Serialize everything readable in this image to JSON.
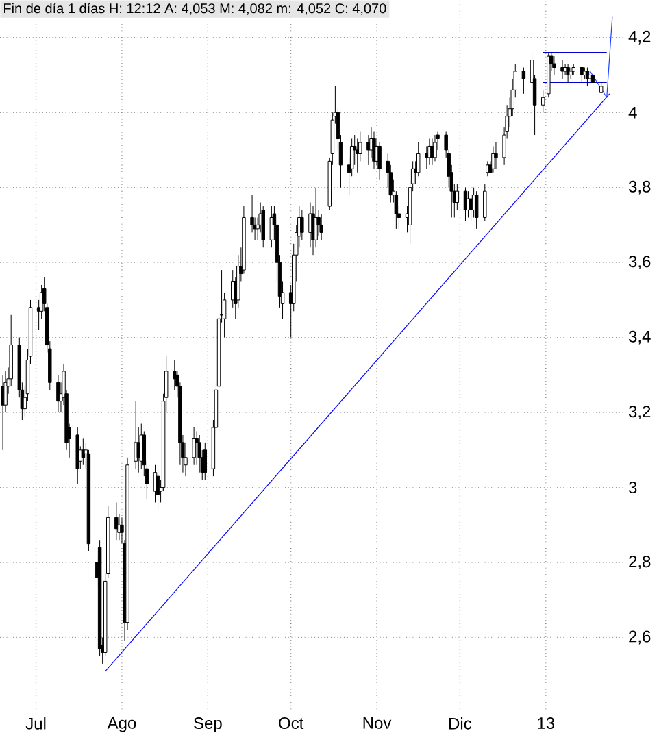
{
  "chart_data": {
    "type": "candlestick",
    "title": "Fin de día 1 días H: 12:12 A: 4,053 M: 4,082 m: 4,052 C: 4,070",
    "x": [
      "2012-06-19",
      "2012-06-20",
      "2012-06-21",
      "2012-06-22",
      "2012-06-25",
      "2012-06-26",
      "2012-06-27",
      "2012-06-28",
      "2012-06-29",
      "2012-07-02",
      "2012-07-03",
      "2012-07-04",
      "2012-07-05",
      "2012-07-06",
      "2012-07-09",
      "2012-07-10",
      "2012-07-11",
      "2012-07-12",
      "2012-07-13",
      "2012-07-16",
      "2012-07-17",
      "2012-07-18",
      "2012-07-19",
      "2012-07-20",
      "2012-07-23",
      "2012-07-24",
      "2012-07-25",
      "2012-07-26",
      "2012-07-27",
      "2012-07-30",
      "2012-07-31",
      "2012-08-01",
      "2012-08-02",
      "2012-08-03",
      "2012-08-06",
      "2012-08-07",
      "2012-08-08",
      "2012-08-09",
      "2012-08-10",
      "2012-08-13",
      "2012-08-14",
      "2012-08-15",
      "2012-08-16",
      "2012-08-17",
      "2012-08-20",
      "2012-08-21",
      "2012-08-22",
      "2012-08-23",
      "2012-08-24",
      "2012-08-27",
      "2012-08-28",
      "2012-08-29",
      "2012-08-30",
      "2012-08-31",
      "2012-09-03",
      "2012-09-04",
      "2012-09-05",
      "2012-09-06",
      "2012-09-07",
      "2012-09-10",
      "2012-09-11",
      "2012-09-12",
      "2012-09-13",
      "2012-09-14",
      "2012-09-17",
      "2012-09-18",
      "2012-09-19",
      "2012-09-20",
      "2012-09-21",
      "2012-09-24",
      "2012-09-25",
      "2012-09-26",
      "2012-09-27",
      "2012-09-28",
      "2012-10-01",
      "2012-10-02",
      "2012-10-03",
      "2012-10-04",
      "2012-10-05",
      "2012-10-08",
      "2012-10-09",
      "2012-10-10",
      "2012-10-11",
      "2012-10-12",
      "2012-10-15",
      "2012-10-16",
      "2012-10-17",
      "2012-10-18",
      "2012-10-19",
      "2012-10-22",
      "2012-10-23",
      "2012-10-24",
      "2012-10-25",
      "2012-10-26",
      "2012-10-29",
      "2012-10-30",
      "2012-10-31",
      "2012-11-01",
      "2012-11-02",
      "2012-11-05",
      "2012-11-06",
      "2012-11-07",
      "2012-11-08",
      "2012-11-09",
      "2012-11-12",
      "2012-11-13",
      "2012-11-14",
      "2012-11-15",
      "2012-11-16",
      "2012-11-19",
      "2012-11-20",
      "2012-11-21",
      "2012-11-22",
      "2012-11-23",
      "2012-11-26",
      "2012-11-27",
      "2012-11-28",
      "2012-11-29",
      "2012-11-30",
      "2012-12-03",
      "2012-12-04",
      "2012-12-05",
      "2012-12-06",
      "2012-12-07",
      "2012-12-10",
      "2012-12-11",
      "2012-12-12",
      "2012-12-13",
      "2012-12-14",
      "2012-12-17",
      "2012-12-18",
      "2012-12-19",
      "2012-12-20",
      "2012-12-21",
      "2012-12-24",
      "2012-12-27",
      "2012-12-28",
      "2012-12-31",
      "2013-01-02",
      "2013-01-03",
      "2013-01-04",
      "2013-01-07",
      "2013-01-08",
      "2013-01-09",
      "2013-01-10",
      "2013-01-11",
      "2013-01-14",
      "2013-01-15",
      "2013-01-16",
      "2013-01-17",
      "2013-01-18",
      "2013-01-21"
    ],
    "ohlc": [
      [
        3.27,
        3.3,
        3.1,
        3.22
      ],
      [
        3.22,
        3.31,
        3.2,
        3.28
      ],
      [
        3.27,
        3.32,
        3.25,
        3.29
      ],
      [
        3.29,
        3.46,
        3.27,
        3.38
      ],
      [
        3.38,
        3.4,
        3.24,
        3.26
      ],
      [
        3.26,
        3.28,
        3.18,
        3.21
      ],
      [
        3.21,
        3.27,
        3.19,
        3.24
      ],
      [
        3.25,
        3.37,
        3.23,
        3.34
      ],
      [
        3.35,
        3.5,
        3.33,
        3.48
      ],
      [
        3.48,
        3.5,
        3.42,
        3.47
      ],
      [
        3.47,
        3.54,
        3.45,
        3.52
      ],
      [
        3.53,
        3.56,
        3.47,
        3.49
      ],
      [
        3.48,
        3.49,
        3.36,
        3.38
      ],
      [
        3.37,
        3.39,
        3.26,
        3.28
      ],
      [
        3.28,
        3.3,
        3.2,
        3.23
      ],
      [
        3.23,
        3.28,
        3.2,
        3.25
      ],
      [
        3.24,
        3.33,
        3.22,
        3.31
      ],
      [
        3.25,
        3.26,
        3.1,
        3.12
      ],
      [
        3.16,
        3.17,
        3.08,
        3.13
      ],
      [
        3.14,
        3.16,
        3.01,
        3.05
      ],
      [
        3.07,
        3.11,
        3.05,
        3.1
      ],
      [
        3.1,
        3.13,
        3.06,
        3.08
      ],
      [
        3.09,
        3.12,
        3.05,
        3.1
      ],
      [
        3.09,
        3.1,
        2.83,
        2.85
      ],
      [
        2.8,
        2.82,
        2.73,
        2.76
      ],
      [
        2.84,
        2.86,
        2.55,
        2.57
      ],
      [
        2.58,
        2.6,
        2.53,
        2.56
      ],
      [
        2.56,
        2.77,
        2.55,
        2.75
      ],
      [
        2.77,
        2.95,
        2.76,
        2.92
      ],
      [
        2.92,
        2.96,
        2.86,
        2.89
      ],
      [
        2.88,
        2.93,
        2.86,
        2.9
      ],
      [
        2.9,
        2.92,
        2.85,
        2.88
      ],
      [
        2.85,
        2.86,
        2.59,
        2.64
      ],
      [
        2.64,
        3.08,
        2.62,
        3.06
      ],
      [
        3.07,
        3.23,
        3.05,
        3.12
      ],
      [
        3.12,
        3.16,
        3.04,
        3.08
      ],
      [
        3.07,
        3.17,
        3.05,
        3.14
      ],
      [
        3.14,
        3.15,
        3.03,
        3.06
      ],
      [
        3.05,
        3.07,
        2.97,
        3.01
      ],
      [
        2.99,
        3.06,
        2.96,
        3.04
      ],
      [
        3.03,
        3.05,
        2.94,
        2.98
      ],
      [
        2.99,
        3.02,
        2.96,
        3.0
      ],
      [
        3.0,
        3.25,
        2.99,
        3.23
      ],
      [
        3.24,
        3.35,
        3.2,
        3.31
      ],
      [
        3.31,
        3.34,
        3.26,
        3.29
      ],
      [
        3.3,
        3.31,
        3.24,
        3.27
      ],
      [
        3.27,
        3.28,
        3.06,
        3.12
      ],
      [
        3.12,
        3.14,
        3.04,
        3.08
      ],
      [
        3.06,
        3.12,
        3.03,
        3.08
      ],
      [
        3.08,
        3.16,
        3.06,
        3.13
      ],
      [
        3.13,
        3.15,
        3.06,
        3.12
      ],
      [
        3.12,
        3.14,
        3.04,
        3.08
      ],
      [
        3.08,
        3.1,
        3.02,
        3.04
      ],
      [
        3.1,
        3.12,
        3.02,
        3.04
      ],
      [
        3.05,
        3.18,
        3.03,
        3.16
      ],
      [
        3.16,
        3.28,
        3.14,
        3.26
      ],
      [
        3.27,
        3.48,
        3.25,
        3.45
      ],
      [
        3.46,
        3.58,
        3.44,
        3.46
      ],
      [
        3.45,
        3.52,
        3.4,
        3.5
      ],
      [
        3.5,
        3.58,
        3.48,
        3.55
      ],
      [
        3.55,
        3.56,
        3.45,
        3.49
      ],
      [
        3.5,
        3.62,
        3.48,
        3.59
      ],
      [
        3.59,
        3.64,
        3.55,
        3.57
      ],
      [
        3.58,
        3.75,
        3.57,
        3.72
      ],
      [
        3.72,
        3.78,
        3.68,
        3.7
      ],
      [
        3.7,
        3.72,
        3.66,
        3.69
      ],
      [
        3.69,
        3.72,
        3.66,
        3.7
      ],
      [
        3.7,
        3.76,
        3.68,
        3.73
      ],
      [
        3.74,
        3.75,
        3.64,
        3.66
      ],
      [
        3.66,
        3.75,
        3.64,
        3.72
      ],
      [
        3.73,
        3.75,
        3.66,
        3.7
      ],
      [
        3.7,
        3.72,
        3.55,
        3.6
      ],
      [
        3.6,
        3.62,
        3.48,
        3.51
      ],
      [
        3.49,
        3.55,
        3.45,
        3.52
      ],
      [
        3.52,
        3.54,
        3.4,
        3.49
      ],
      [
        3.49,
        3.65,
        3.47,
        3.62
      ],
      [
        3.62,
        3.7,
        3.55,
        3.68
      ],
      [
        3.67,
        3.75,
        3.64,
        3.72
      ],
      [
        3.72,
        3.74,
        3.66,
        3.68
      ],
      [
        3.68,
        3.76,
        3.64,
        3.73
      ],
      [
        3.73,
        3.75,
        3.62,
        3.66
      ],
      [
        3.66,
        3.8,
        3.64,
        3.72
      ],
      [
        3.72,
        3.74,
        3.67,
        3.7
      ],
      [
        3.7,
        3.73,
        3.66,
        3.68
      ],
      [
        3.75,
        3.88,
        3.74,
        3.87
      ],
      [
        3.89,
        4.0,
        3.86,
        3.98
      ],
      [
        3.99,
        4.07,
        3.97,
        4.0
      ],
      [
        4.0,
        4.01,
        3.9,
        3.93
      ],
      [
        3.92,
        3.94,
        3.8,
        3.86
      ],
      [
        3.86,
        3.88,
        3.78,
        3.84
      ],
      [
        3.85,
        3.93,
        3.83,
        3.91
      ],
      [
        3.91,
        3.94,
        3.86,
        3.9
      ],
      [
        3.9,
        3.93,
        3.84,
        3.89
      ],
      [
        3.89,
        3.95,
        3.87,
        3.92
      ],
      [
        3.92,
        3.94,
        3.86,
        3.9
      ],
      [
        3.9,
        3.96,
        3.88,
        3.93
      ],
      [
        3.93,
        3.95,
        3.85,
        3.87
      ],
      [
        3.87,
        3.93,
        3.86,
        3.91
      ],
      [
        3.91,
        3.92,
        3.82,
        3.85
      ],
      [
        3.87,
        3.89,
        3.8,
        3.84
      ],
      [
        3.84,
        3.86,
        3.76,
        3.78
      ],
      [
        3.78,
        3.82,
        3.76,
        3.79
      ],
      [
        3.78,
        3.79,
        3.69,
        3.73
      ],
      [
        3.73,
        3.75,
        3.69,
        3.72
      ],
      [
        3.72,
        3.75,
        3.68,
        3.73
      ],
      [
        3.7,
        3.82,
        3.65,
        3.8
      ],
      [
        3.81,
        3.87,
        3.79,
        3.85
      ],
      [
        3.85,
        3.87,
        3.81,
        3.84
      ],
      [
        3.84,
        3.92,
        3.83,
        3.89
      ],
      [
        3.89,
        3.91,
        3.85,
        3.88
      ],
      [
        3.88,
        3.93,
        3.86,
        3.91
      ],
      [
        3.91,
        3.93,
        3.86,
        3.88
      ],
      [
        3.88,
        3.94,
        3.87,
        3.92
      ],
      [
        3.94,
        3.95,
        3.9,
        3.93
      ],
      [
        3.94,
        3.95,
        3.88,
        3.9
      ],
      [
        3.89,
        3.9,
        3.8,
        3.83
      ],
      [
        3.84,
        3.86,
        3.72,
        3.79
      ],
      [
        3.79,
        3.81,
        3.72,
        3.76
      ],
      [
        3.76,
        3.81,
        3.74,
        3.79
      ],
      [
        3.79,
        3.8,
        3.71,
        3.74
      ],
      [
        3.74,
        3.79,
        3.72,
        3.77
      ],
      [
        3.77,
        3.78,
        3.71,
        3.74
      ],
      [
        3.74,
        3.8,
        3.72,
        3.78
      ],
      [
        3.78,
        3.79,
        3.69,
        3.72
      ],
      [
        3.72,
        3.81,
        3.71,
        3.79
      ],
      [
        3.84,
        3.87,
        3.83,
        3.86
      ],
      [
        3.86,
        3.87,
        3.84,
        3.84
      ],
      [
        3.85,
        3.91,
        3.84,
        3.89
      ],
      [
        3.89,
        3.92,
        3.85,
        3.88
      ],
      [
        3.88,
        3.96,
        3.86,
        3.94
      ],
      [
        3.95,
        4.02,
        3.93,
        3.99
      ],
      [
        3.99,
        4.04,
        3.96,
        4.01
      ],
      [
        4.01,
        4.09,
        3.99,
        4.06
      ],
      [
        4.06,
        4.13,
        4.04,
        4.11
      ],
      [
        4.11,
        4.12,
        4.05,
        4.09
      ],
      [
        4.08,
        4.16,
        4.07,
        4.14
      ],
      [
        4.09,
        4.1,
        3.94,
        4.02
      ],
      [
        4.02,
        4.06,
        4.0,
        4.04
      ],
      [
        4.05,
        4.16,
        4.04,
        4.15
      ],
      [
        4.15,
        4.16,
        4.11,
        4.13
      ],
      [
        4.13,
        4.15,
        4.1,
        4.12
      ],
      [
        4.12,
        4.14,
        4.09,
        4.11
      ],
      [
        4.11,
        4.13,
        4.1,
        4.12
      ],
      [
        4.12,
        4.13,
        4.08,
        4.1
      ],
      [
        4.1,
        4.12,
        4.09,
        4.11
      ],
      [
        4.11,
        4.13,
        4.1,
        4.12
      ],
      [
        4.12,
        4.12,
        4.08,
        4.1
      ],
      [
        4.1,
        4.12,
        4.09,
        4.11
      ],
      [
        4.11,
        4.12,
        4.07,
        4.09
      ],
      [
        4.09,
        4.11,
        4.08,
        4.1
      ],
      [
        4.1,
        4.1,
        4.06,
        4.08
      ],
      [
        4.053,
        4.082,
        4.052,
        4.07
      ]
    ],
    "series": [
      {
        "type": "line",
        "color": "#0000ff",
        "x": [
          "2012-07-26",
          "2013-01-24"
        ],
        "values": [
          2.51,
          4.05
        ]
      },
      {
        "type": "line",
        "color": "#0000cc",
        "x": [
          "2012-12-31",
          "2013-01-23"
        ],
        "values": [
          4.16,
          4.16
        ]
      },
      {
        "type": "line",
        "color": "#0000cc",
        "x": [
          "2012-12-31",
          "2013-01-23"
        ],
        "values": [
          4.08,
          4.08
        ]
      },
      {
        "type": "line",
        "color": "#1f3fff",
        "x": [
          "2013-01-17",
          "2013-01-23",
          "2013-01-25"
        ],
        "values": [
          4.11,
          4.04,
          4.255
        ]
      }
    ],
    "xlim": [
      "2012-06-18",
      "2013-01-29"
    ],
    "ylim": [
      2.4,
      4.3
    ],
    "xticks": [
      {
        "value": "2012-07-01",
        "label": "Jul"
      },
      {
        "value": "2012-08-01",
        "label": "Ago"
      },
      {
        "value": "2012-09-01",
        "label": "Sep"
      },
      {
        "value": "2012-10-01",
        "label": "Oct"
      },
      {
        "value": "2012-11-01",
        "label": "Nov"
      },
      {
        "value": "2012-12-01",
        "label": "Dic"
      },
      {
        "value": "2013-01-01",
        "label": "13"
      }
    ],
    "yticks": [
      {
        "value": 2.6,
        "label": "2,6"
      },
      {
        "value": 2.8,
        "label": "2,8"
      },
      {
        "value": 3,
        "label": "3"
      },
      {
        "value": 3.2,
        "label": "3,2"
      },
      {
        "value": 3.4,
        "label": "3,4"
      },
      {
        "value": 3.6,
        "label": "3,6"
      },
      {
        "value": 3.8,
        "label": "3,8"
      },
      {
        "value": 4,
        "label": "4"
      },
      {
        "value": 4.2,
        "label": "4,2"
      }
    ],
    "grid": true
  }
}
